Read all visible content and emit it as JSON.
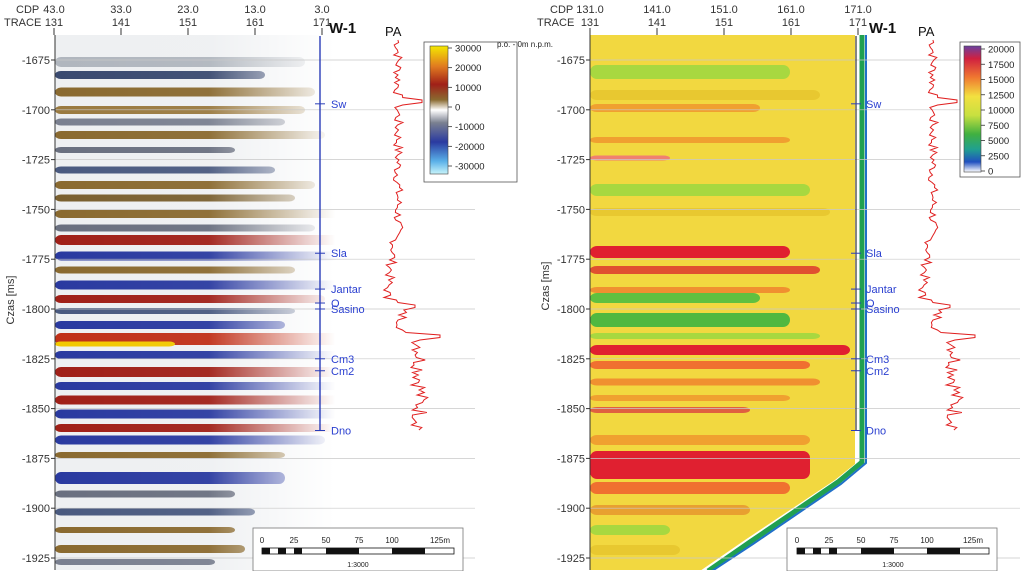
{
  "header_labels": {
    "cdp": "CDP",
    "trace": "TRACE"
  },
  "ylabel": "Czas [ms]",
  "y_ticks": [
    -1675,
    -1700,
    -1725,
    -1750,
    -1775,
    -1800,
    -1825,
    -1850,
    -1875,
    -1900,
    -1925
  ],
  "well_name": "W-1",
  "log_label": "PA",
  "scale_bar": {
    "ticks": [
      "0",
      "25",
      "50",
      "75",
      "100",
      "125m"
    ],
    "ratio": "1:3000"
  },
  "horizons": [
    {
      "name": "Sw",
      "time": -1697
    },
    {
      "name": "Sla",
      "time": -1772
    },
    {
      "name": "Jantar",
      "time": -1790
    },
    {
      "name": "O",
      "time": -1797
    },
    {
      "name": "Sasino",
      "time": -1800
    },
    {
      "name": "Cm3",
      "time": -1825
    },
    {
      "name": "Cm2",
      "time": -1831
    },
    {
      "name": "Dno",
      "time": -1861
    }
  ],
  "colors": {
    "horizon_text": "#2b40d0",
    "log_line": "#e02020",
    "well_line": "#2a3db8"
  },
  "chart_data": [
    {
      "type": "heatmap",
      "panel": "left",
      "cdp_ticks": [
        "43.0",
        "33.0",
        "23.0",
        "13.0",
        "3.0"
      ],
      "trace_ticks": [
        "131",
        "141",
        "151",
        "161",
        "171"
      ],
      "ylabel": "Czas [ms]",
      "ylim": [
        -1930,
        -1662
      ],
      "colorbar": {
        "ticks": [
          "30000",
          "20000",
          "10000",
          "0",
          "-10000",
          "-20000",
          "-30000"
        ],
        "range": [
          -30000,
          30000
        ],
        "colors": [
          "#f2e600",
          "#e07020",
          "#a02018",
          "#8a6a30",
          "#ffffff",
          "#6a7080",
          "#2a3aa0",
          "#5ab0e8",
          "#c0f0f8"
        ]
      },
      "annotation": "",
      "grid": true
    },
    {
      "type": "heatmap",
      "panel": "right",
      "cdp_ticks": [
        "131.0",
        "141.0",
        "151.0",
        "161.0",
        "171.0"
      ],
      "trace_ticks": [
        "131",
        "141",
        "151",
        "161",
        "171"
      ],
      "ylabel": "Czas [ms]",
      "ylim": [
        -1930,
        -1662
      ],
      "colorbar": {
        "ticks": [
          "20000",
          "17500",
          "15000",
          "12500",
          "10000",
          "7500",
          "5000",
          "2500",
          "0"
        ],
        "range": [
          0,
          20000
        ],
        "colors": [
          "#6a40a0",
          "#d02030",
          "#f09030",
          "#f2e040",
          "#f2e040",
          "#60c040",
          "#20a050",
          "#2060c0",
          "#ffffff"
        ]
      },
      "annotation": "p.o. - 0m n.p.m.",
      "grid": true
    }
  ]
}
